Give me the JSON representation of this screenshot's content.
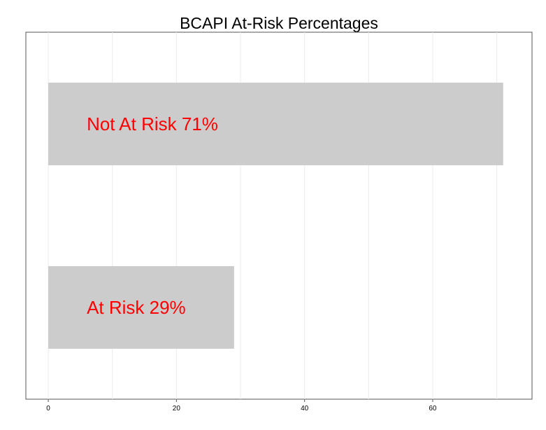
{
  "chart_data": {
    "type": "bar",
    "orientation": "horizontal",
    "title": "BCAPI At-Risk Percentages",
    "xlabel": "",
    "ylabel": "",
    "categories": [
      "Not At Risk",
      "At Risk"
    ],
    "values": [
      71,
      29
    ],
    "bar_labels": [
      "Not At Risk 71%",
      "At Risk 29%"
    ],
    "xlim": [
      -3.5,
      75.5
    ],
    "x_ticks": [
      0,
      20,
      40,
      60
    ],
    "x_tick_labels": [
      "0",
      "20",
      "40",
      "60"
    ],
    "grid": true,
    "bar_color": "#cccccc",
    "label_color": "#ff0000",
    "grid_color": "#ebebeb",
    "legend": "none"
  }
}
